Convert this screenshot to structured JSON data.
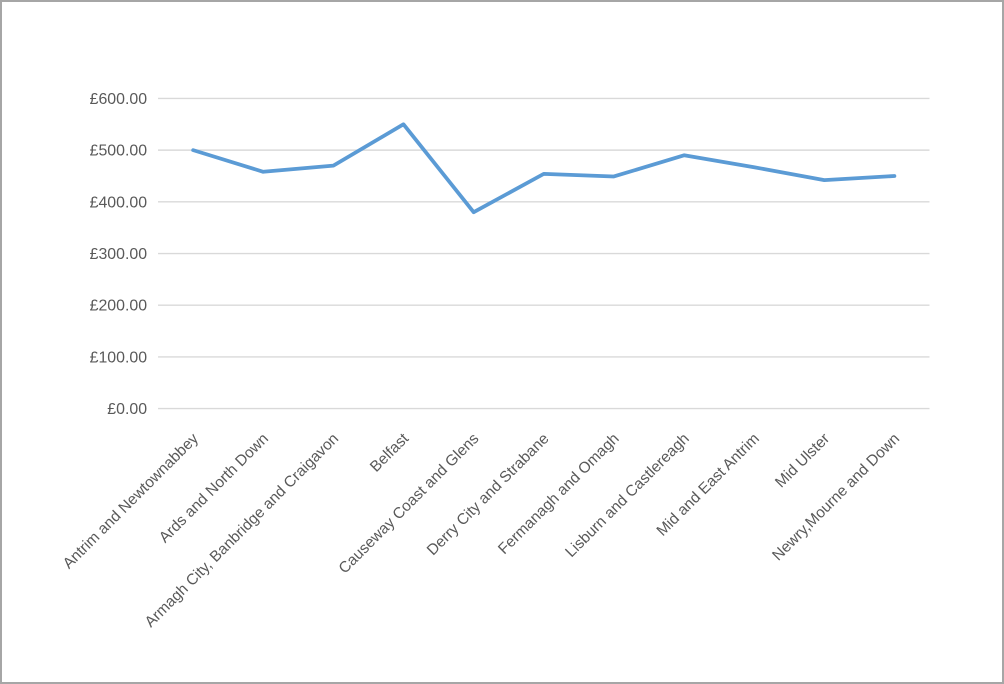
{
  "window": {
    "background": "#FFFFFF",
    "border_color": "#A6A6A6"
  },
  "chart_data": {
    "type": "line",
    "title": "",
    "xlabel": "",
    "ylabel": "",
    "categories": [
      "Antrim and Newtownabbey",
      "Ards and North Down",
      "Armagh City, Banbridge and Craigavon",
      "Belfast",
      "Causeway Coast and Glens",
      "Derry City and Strabane",
      "Fermanagh and Omagh",
      "Lisburn and Castlereagh",
      "Mid and East Antrim",
      "Mid Ulster",
      "Newry,Mourne and Down"
    ],
    "values": [
      500,
      458,
      470,
      550,
      380,
      454,
      449,
      490,
      467,
      442,
      450
    ],
    "ylim": [
      0,
      600
    ],
    "ytick_values": [
      0,
      100,
      200,
      300,
      400,
      500,
      600
    ],
    "ytick_labels": [
      "£0.00",
      "£100.00",
      "£200.00",
      "£300.00",
      "£400.00",
      "£500.00",
      "£600.00"
    ],
    "grid": true,
    "legend": false,
    "x_label_rotation_deg": 45,
    "colors": {
      "line": "#5B9BD5",
      "gridline": "#D9D9D9",
      "axis_label": "#595959"
    }
  }
}
